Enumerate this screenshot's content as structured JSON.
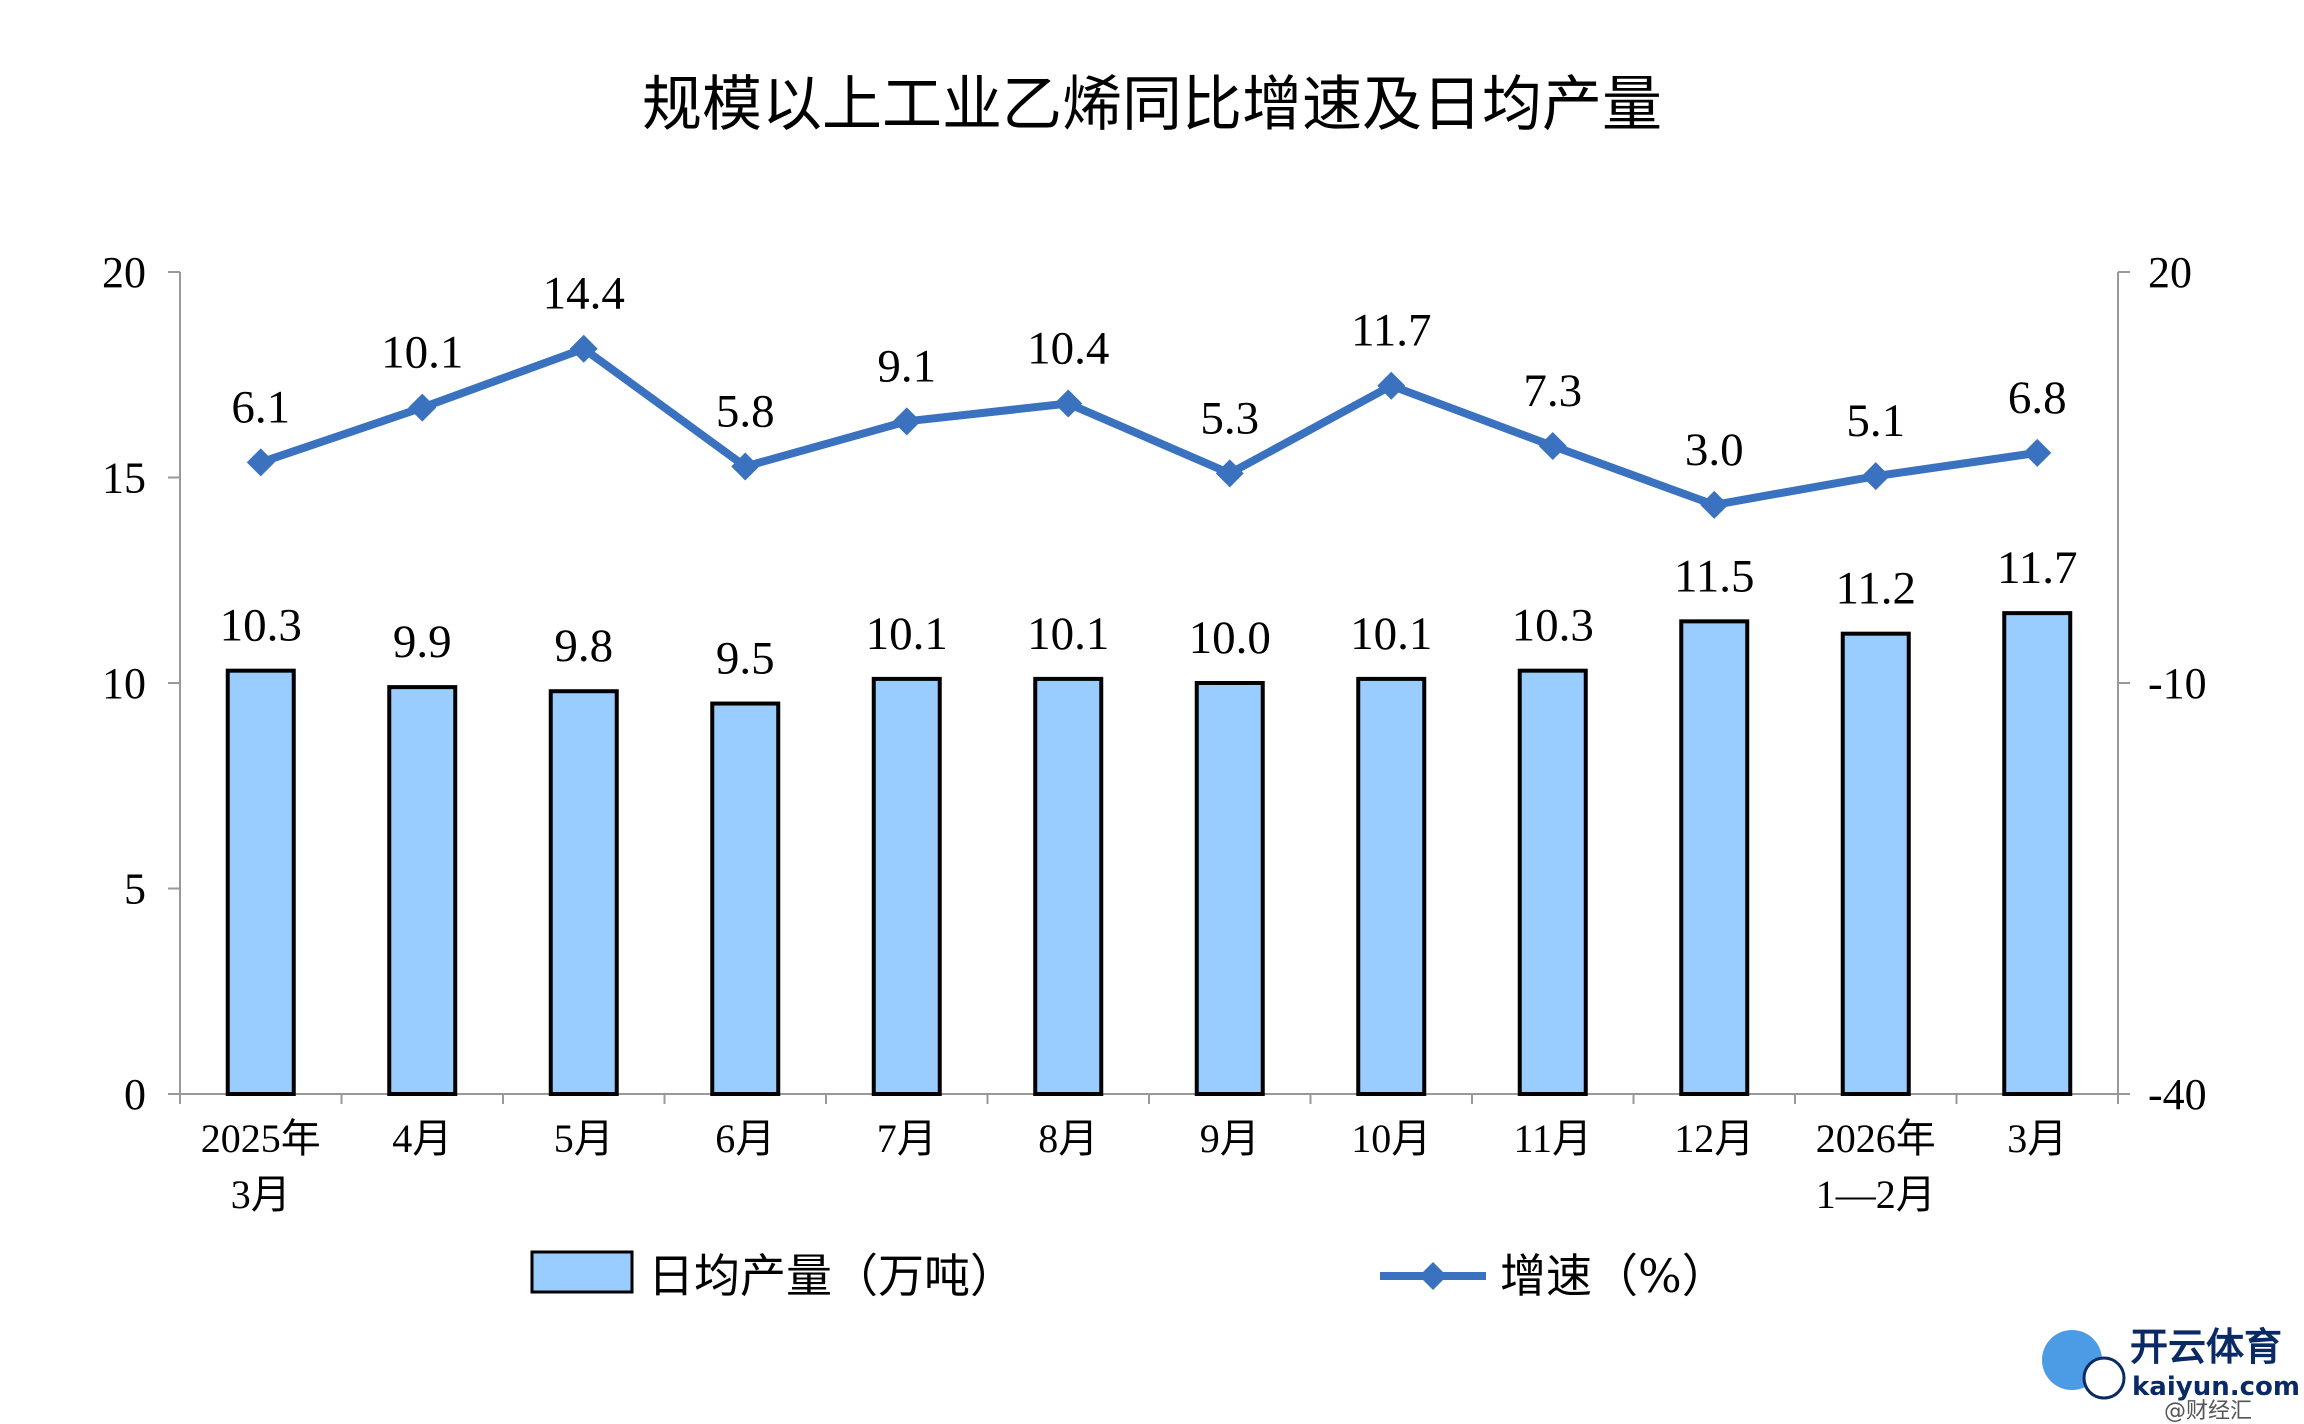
{
  "chart_data": {
    "type": "bar+line",
    "title": "规模以上工业乙烯同比增速及日均产量",
    "categories": [
      [
        "2025年",
        "3月"
      ],
      [
        "4月"
      ],
      [
        "5月"
      ],
      [
        "6月"
      ],
      [
        "7月"
      ],
      [
        "8月"
      ],
      [
        "9月"
      ],
      [
        "10月"
      ],
      [
        "11月"
      ],
      [
        "12月"
      ],
      [
        "2026年",
        "1—2月"
      ],
      [
        "3月"
      ]
    ],
    "series": [
      {
        "name": "日均产量（万吨）",
        "type": "bar",
        "axis": "left",
        "values": [
          10.3,
          9.9,
          9.8,
          9.5,
          10.1,
          10.1,
          10.0,
          10.1,
          10.3,
          11.5,
          11.2,
          11.7
        ],
        "labels": [
          "10.3",
          "9.9",
          "9.8",
          "9.5",
          "10.1",
          "10.1",
          "10.0",
          "10.1",
          "10.3",
          "11.5",
          "11.2",
          "11.7"
        ]
      },
      {
        "name": "增速（%）",
        "type": "line",
        "axis": "right",
        "values": [
          6.1,
          10.1,
          14.4,
          5.8,
          9.1,
          10.4,
          5.3,
          11.7,
          7.3,
          3.0,
          5.1,
          6.8
        ],
        "labels": [
          "6.1",
          "10.1",
          "14.4",
          "5.8",
          "9.1",
          "10.4",
          "5.3",
          "11.7",
          "7.3",
          "3.0",
          "5.1",
          "6.8"
        ]
      }
    ],
    "y_left": {
      "min": 0,
      "max": 20,
      "ticks": [
        0,
        5,
        10,
        15,
        20
      ],
      "tick_labels": [
        "0",
        "5",
        "10",
        "15",
        "20"
      ]
    },
    "y_right": {
      "min": -40,
      "max": 20,
      "ticks": [
        -40,
        -10,
        20
      ],
      "tick_labels": [
        "-40",
        "-10",
        "20"
      ]
    },
    "legend_position": "bottom",
    "colors": {
      "bar_fill": "#99ccff",
      "bar_stroke": "#000000",
      "line": "#3a72c0",
      "axis": "#999999"
    }
  },
  "watermark": {
    "brand": "开云体育",
    "domain": "kaiyun.com",
    "sub": "@财经汇"
  }
}
